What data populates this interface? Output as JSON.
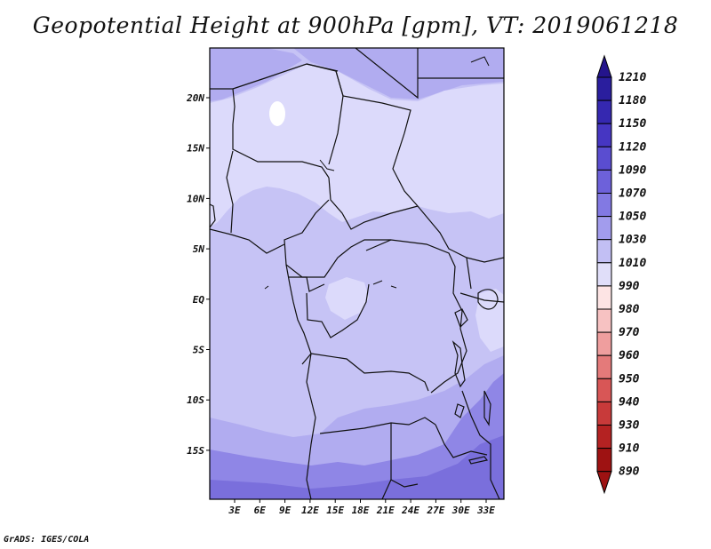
{
  "title": "Geopotential Height at 900hPa [gpm], VT: 2019061218",
  "footer": "GrADS: IGES/COLA",
  "map": {
    "lat_labels": [
      "20N",
      "15N",
      "10N",
      "5N",
      "EQ",
      "5S",
      "10S",
      "15S"
    ],
    "lon_labels": [
      "3E",
      "6E",
      "9E",
      "12E",
      "15E",
      "18E",
      "21E",
      "24E",
      "27E",
      "30E",
      "33E"
    ]
  },
  "colorbar": {
    "labels": [
      "1210",
      "1180",
      "1150",
      "1120",
      "1090",
      "1070",
      "1050",
      "1030",
      "1010",
      "990",
      "980",
      "970",
      "960",
      "950",
      "940",
      "930",
      "910",
      "890"
    ],
    "colors": [
      "#24148c",
      "#2a1e9e",
      "#3528b0",
      "#4636c2",
      "#5a4dd0",
      "#6d61da",
      "#8279e3",
      "#a29ced",
      "#c2bff4",
      "#e0def9",
      "#fde4e4",
      "#f7c2c2",
      "#ef9e9e",
      "#e47a7a",
      "#d85656",
      "#c83a3a",
      "#b42222",
      "#9e1212"
    ]
  }
}
